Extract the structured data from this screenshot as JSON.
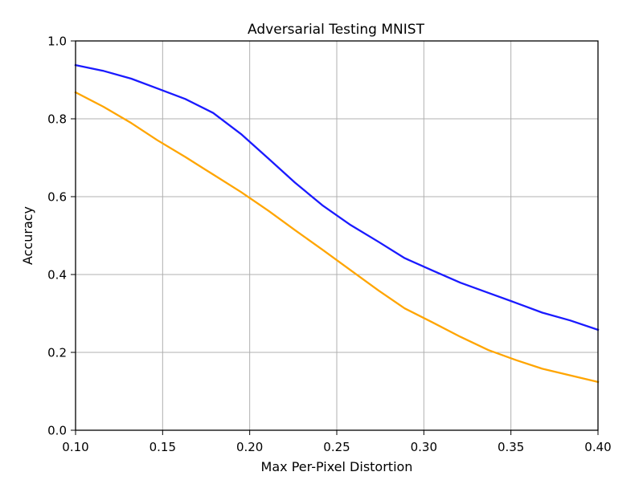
{
  "chart_data": {
    "type": "line",
    "title": "Adversarial Testing MNIST",
    "xlabel": "Max Per-Pixel Distortion",
    "ylabel": "Accuracy",
    "xlim": [
      0.1,
      0.4
    ],
    "ylim": [
      0.0,
      1.0
    ],
    "grid": true,
    "legend": "none",
    "x_ticks": [
      0.1,
      0.15,
      0.2,
      0.25,
      0.3,
      0.35,
      0.4
    ],
    "x_tick_labels": [
      "0.10",
      "0.15",
      "0.20",
      "0.25",
      "0.30",
      "0.35",
      "0.40"
    ],
    "y_ticks": [
      0.0,
      0.2,
      0.4,
      0.6,
      0.8,
      1.0
    ],
    "y_tick_labels": [
      "0.0",
      "0.2",
      "0.4",
      "0.6",
      "0.8",
      "1.0"
    ],
    "series": [
      {
        "name": "blue",
        "color": "#1a1aff",
        "points": [
          [
            0.1,
            0.938
          ],
          [
            0.116,
            0.923
          ],
          [
            0.132,
            0.903
          ],
          [
            0.147,
            0.878
          ],
          [
            0.163,
            0.851
          ],
          [
            0.179,
            0.815
          ],
          [
            0.195,
            0.761
          ],
          [
            0.211,
            0.697
          ],
          [
            0.226,
            0.636
          ],
          [
            0.242,
            0.577
          ],
          [
            0.258,
            0.527
          ],
          [
            0.274,
            0.484
          ],
          [
            0.289,
            0.442
          ],
          [
            0.305,
            0.41
          ],
          [
            0.321,
            0.379
          ],
          [
            0.337,
            0.353
          ],
          [
            0.353,
            0.327
          ],
          [
            0.368,
            0.302
          ],
          [
            0.384,
            0.282
          ],
          [
            0.4,
            0.258
          ]
        ]
      },
      {
        "name": "orange",
        "color": "#ffa500",
        "points": [
          [
            0.1,
            0.868
          ],
          [
            0.116,
            0.831
          ],
          [
            0.132,
            0.789
          ],
          [
            0.147,
            0.745
          ],
          [
            0.163,
            0.702
          ],
          [
            0.179,
            0.657
          ],
          [
            0.195,
            0.612
          ],
          [
            0.211,
            0.563
          ],
          [
            0.226,
            0.514
          ],
          [
            0.242,
            0.463
          ],
          [
            0.258,
            0.411
          ],
          [
            0.274,
            0.359
          ],
          [
            0.289,
            0.313
          ],
          [
            0.305,
            0.277
          ],
          [
            0.321,
            0.24
          ],
          [
            0.337,
            0.206
          ],
          [
            0.353,
            0.18
          ],
          [
            0.368,
            0.158
          ],
          [
            0.384,
            0.141
          ],
          [
            0.4,
            0.124
          ]
        ]
      }
    ]
  }
}
